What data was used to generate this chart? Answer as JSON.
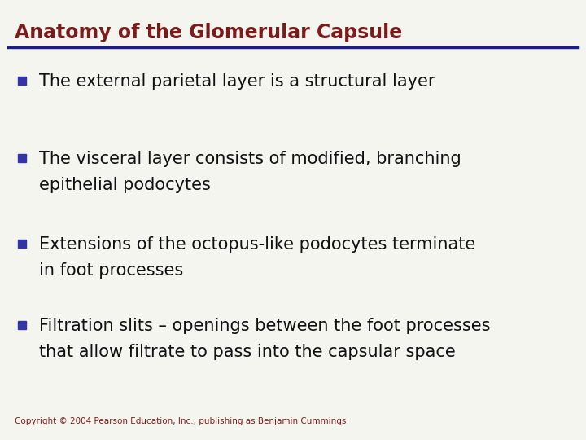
{
  "title": "Anatomy of the Glomerular Capsule",
  "title_color": "#7B1C1C",
  "title_fontsize": 17,
  "line_color": "#1C1C8B",
  "background_color": "#F5F5F0",
  "bullet_color": "#3333AA",
  "text_color": "#111111",
  "text_fontsize": 15,
  "copyright": "Copyright © 2004 Pearson Education, Inc., publishing as Benjamin Cummings",
  "copyright_color": "#7B1C1C",
  "copyright_fontsize": 7.5,
  "bullets": [
    {
      "lines": [
        "The external parietal layer is a structural layer"
      ]
    },
    {
      "lines": [
        "The visceral layer consists of modified, branching",
        "epithelial podocytes"
      ]
    },
    {
      "lines": [
        "Extensions of the octopus-like podocytes terminate",
        "in foot processes"
      ]
    },
    {
      "lines": [
        "Filtration slits – openings between the foot processes",
        "that allow filtrate to pass into the capsular space"
      ]
    }
  ]
}
